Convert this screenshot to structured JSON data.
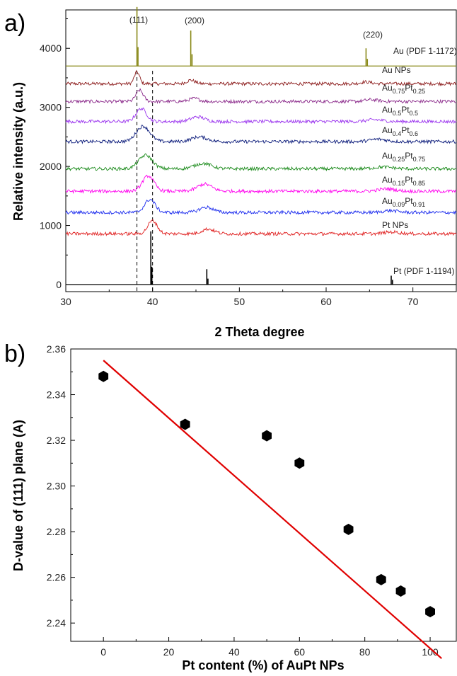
{
  "chart_data": [
    {
      "panel_label": "a)",
      "type": "line",
      "xlabel": "2 Theta degree",
      "ylabel": "Relative intensity (a.u.)",
      "xlim": [
        30,
        75
      ],
      "ylim": [
        -120,
        4650
      ],
      "x_ticks": [
        30,
        40,
        50,
        60,
        70
      ],
      "y_ticks": [
        0,
        1000,
        2000,
        3000,
        4000
      ],
      "dashed_reference_lines": [
        38.2,
        40.0
      ],
      "peak_labels": [
        {
          "text": "(111)",
          "x": 38.2
        },
        {
          "text": "(200)",
          "x": 44.5
        },
        {
          "text": "(220)",
          "x": 64.6
        }
      ],
      "reference_patterns": [
        {
          "name": "Au (PDF 1-1172)",
          "color": "#8a8a1a",
          "baseline": 3700,
          "sticks": [
            {
              "x": 38.2,
              "h": 1000
            },
            {
              "x": 38.32,
              "h": 320
            },
            {
              "x": 44.4,
              "h": 600
            },
            {
              "x": 44.55,
              "h": 200
            },
            {
              "x": 64.6,
              "h": 300
            },
            {
              "x": 64.75,
              "h": 120
            }
          ]
        },
        {
          "name": "Pt (PDF 1-1194)",
          "color": "#000000",
          "baseline": 0,
          "sticks": [
            {
              "x": 39.8,
              "h": 900
            },
            {
              "x": 39.92,
              "h": 300
            },
            {
              "x": 46.25,
              "h": 260
            },
            {
              "x": 46.38,
              "h": 100
            },
            {
              "x": 67.5,
              "h": 150
            },
            {
              "x": 67.65,
              "h": 80
            }
          ]
        }
      ],
      "series": [
        {
          "name": "Au NPs",
          "label_parts": [
            [
              "Au NPs",
              false
            ]
          ],
          "color": "#8b1a1a",
          "baseline": 3400,
          "peaks": [
            {
              "x": 38.2,
              "h": 200,
              "w": 0.5
            },
            {
              "x": 44.4,
              "h": 60,
              "w": 0.8
            },
            {
              "x": 64.6,
              "h": 30,
              "w": 1.0
            }
          ]
        },
        {
          "name": "Au0.75Pt0.25",
          "label_parts": [
            [
              "Au",
              false
            ],
            [
              "0.75",
              true
            ],
            [
              "Pt",
              false
            ],
            [
              "0.25",
              true
            ]
          ],
          "color": "#8b2a8b",
          "baseline": 3100,
          "peaks": [
            {
              "x": 38.5,
              "h": 190,
              "w": 0.7
            },
            {
              "x": 44.8,
              "h": 50,
              "w": 1.0
            },
            {
              "x": 65.2,
              "h": 30,
              "w": 1.2
            }
          ]
        },
        {
          "name": "Au0.5Pt0.5",
          "label_parts": [
            [
              "Au",
              false
            ],
            [
              "0.5",
              true
            ],
            [
              "Pt",
              false
            ],
            [
              "0.5",
              true
            ]
          ],
          "color": "#9a33ee",
          "baseline": 2760,
          "peaks": [
            {
              "x": 38.7,
              "h": 220,
              "w": 1.0
            },
            {
              "x": 45.2,
              "h": 80,
              "w": 1.3
            },
            {
              "x": 65.6,
              "h": 30,
              "w": 1.5
            }
          ]
        },
        {
          "name": "Au0.4Pt0.6",
          "label_parts": [
            [
              "Au",
              false
            ],
            [
              "0.4",
              true
            ],
            [
              "Pt",
              false
            ],
            [
              "0.6",
              true
            ]
          ],
          "color": "#0a1a7a",
          "baseline": 2420,
          "peaks": [
            {
              "x": 38.9,
              "h": 260,
              "w": 1.3
            },
            {
              "x": 45.4,
              "h": 80,
              "w": 1.5
            },
            {
              "x": 66.0,
              "h": 40,
              "w": 1.6
            }
          ]
        },
        {
          "name": "Au0.25Pt0.75",
          "label_parts": [
            [
              "Au",
              false
            ],
            [
              "0.25",
              true
            ],
            [
              "Pt",
              false
            ],
            [
              "0.75",
              true
            ]
          ],
          "color": "#1a8a1a",
          "baseline": 1960,
          "peaks": [
            {
              "x": 39.2,
              "h": 230,
              "w": 1.3
            },
            {
              "x": 45.8,
              "h": 90,
              "w": 1.6
            },
            {
              "x": 66.6,
              "h": 30,
              "w": 1.8
            }
          ]
        },
        {
          "name": "Au0.15Pt0.85",
          "label_parts": [
            [
              "Au",
              false
            ],
            [
              "0.15",
              true
            ],
            [
              "Pt",
              false
            ],
            [
              "0.85",
              true
            ]
          ],
          "color": "#ff00ee",
          "baseline": 1580,
          "peaks": [
            {
              "x": 39.5,
              "h": 260,
              "w": 1.1
            },
            {
              "x": 46.0,
              "h": 120,
              "w": 1.4
            },
            {
              "x": 67.0,
              "h": 40,
              "w": 1.6
            }
          ]
        },
        {
          "name": "Au0.09Pt0.91",
          "label_parts": [
            [
              "Au",
              false
            ],
            [
              "0.09",
              true
            ],
            [
              "Pt",
              false
            ],
            [
              "0.91",
              true
            ]
          ],
          "color": "#1a2aee",
          "baseline": 1220,
          "peaks": [
            {
              "x": 39.7,
              "h": 220,
              "w": 1.0
            },
            {
              "x": 46.2,
              "h": 90,
              "w": 1.3
            },
            {
              "x": 67.4,
              "h": 30,
              "w": 1.5
            }
          ]
        },
        {
          "name": "Pt NPs",
          "label_parts": [
            [
              "Pt NPs",
              false
            ]
          ],
          "color": "#e02020",
          "baseline": 860,
          "peaks": [
            {
              "x": 40.0,
              "h": 220,
              "w": 0.9
            },
            {
              "x": 46.4,
              "h": 80,
              "w": 1.2
            },
            {
              "x": 67.6,
              "h": 30,
              "w": 1.4
            }
          ]
        }
      ]
    },
    {
      "panel_label": "b)",
      "type": "scatter",
      "xlabel": "Pt content (%) of AuPt NPs",
      "ylabel": "D-value of (111) plane (A)",
      "xlim": [
        -10,
        108
      ],
      "ylim": [
        2.232,
        2.36
      ],
      "x_ticks": [
        0,
        20,
        40,
        60,
        80,
        100
      ],
      "y_ticks": [
        2.24,
        2.26,
        2.28,
        2.3,
        2.32,
        2.34,
        2.36
      ],
      "y_tick_labels": [
        "2.24",
        "2.26",
        "2.28",
        "2.30",
        "2.32",
        "2.34",
        "2.36"
      ],
      "points": [
        {
          "x": 0,
          "y": 2.348
        },
        {
          "x": 25,
          "y": 2.327
        },
        {
          "x": 50,
          "y": 2.322
        },
        {
          "x": 60,
          "y": 2.31
        },
        {
          "x": 75,
          "y": 2.281
        },
        {
          "x": 85,
          "y": 2.259
        },
        {
          "x": 91,
          "y": 2.254
        },
        {
          "x": 100,
          "y": 2.245
        }
      ],
      "fit_line": {
        "x": [
          0,
          103.5
        ],
        "y": [
          2.355,
          2.2245
        ],
        "color": "#e00000"
      },
      "marker_color": "#000000"
    }
  ]
}
